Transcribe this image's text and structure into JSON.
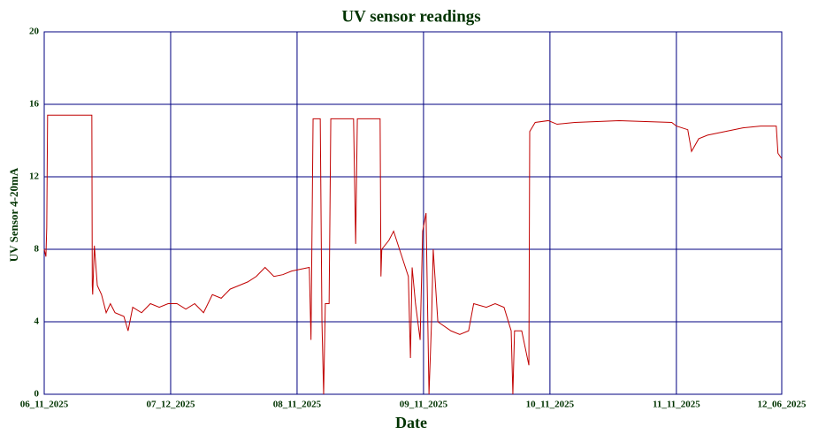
{
  "chart_data": {
    "type": "line",
    "title": "UV sensor readings",
    "x_label": "Date",
    "y_label": "UV Sensor 4-20mA",
    "xlim": [
      0,
      175
    ],
    "xticks": [
      {
        "value": 0,
        "label": "06_11_2025"
      },
      {
        "value": 30,
        "label": "07_12_2025"
      },
      {
        "value": 60,
        "label": "08_11_2025"
      },
      {
        "value": 90,
        "label": "09_11_2025"
      },
      {
        "value": 120,
        "label": "10_11_2025"
      },
      {
        "value": 150,
        "label": "11_11_2025"
      },
      {
        "value": 175,
        "label": "12_06_2025"
      }
    ],
    "ylim": [
      0,
      20
    ],
    "yticks": [
      0,
      4,
      8,
      12,
      16,
      20
    ],
    "grid": true,
    "grid_color": "#000080",
    "series": [
      {
        "color": "#c00000",
        "x": [
          0,
          0.4,
          0.6,
          0.8,
          11.3,
          11.4,
          11.5,
          11.9,
          12.6,
          13.6,
          14.7,
          15.7,
          16.8,
          18.9,
          19.9,
          21.0,
          23.1,
          25.2,
          27.3,
          29.4,
          31.5,
          33.6,
          35.7,
          37.8,
          39.9,
          42.0,
          44.1,
          46.2,
          48.3,
          50.3,
          52.4,
          54.5,
          56.6,
          58.7,
          62.9,
          63.3,
          63.8,
          65.5,
          65.9,
          66.3,
          66.7,
          67.6,
          68.0,
          73.4,
          73.9,
          74.3,
          79.7,
          79.9,
          80.1,
          81.8,
          82.9,
          85.0,
          86.4,
          86.9,
          87.3,
          88.1,
          89.2,
          89.8,
          90.6,
          91.3,
          91.9,
          92.3,
          93.4,
          96.5,
          98.6,
          100.7,
          101.9,
          104.9,
          107.0,
          109.1,
          110.8,
          111.2,
          111.6,
          113.3,
          115.0,
          115.2,
          116.5,
          119.6,
          121.7,
          125.9,
          136.4,
          148.9,
          150.0,
          152.7,
          153.6,
          155.3,
          157.4,
          161.6,
          165.8,
          170.0,
          173.7,
          174.1,
          175.0
        ],
        "values": [
          8,
          7.6,
          9.2,
          15.4,
          15.4,
          6.0,
          5.5,
          8.2,
          6.0,
          5.5,
          4.5,
          5.0,
          4.5,
          4.3,
          3.5,
          4.8,
          4.5,
          5.0,
          4.8,
          5.0,
          5.0,
          4.7,
          5.0,
          4.5,
          5.5,
          5.3,
          5.8,
          6.0,
          6.2,
          6.5,
          7.0,
          6.5,
          6.6,
          6.8,
          7.0,
          3.0,
          15.2,
          15.2,
          4.0,
          0,
          5.0,
          5.0,
          15.2,
          15.2,
          8.3,
          15.2,
          15.2,
          6.5,
          8.0,
          8.5,
          9.0,
          7.5,
          6.5,
          2.0,
          7.0,
          5.0,
          3.0,
          9.0,
          10.0,
          0,
          4.0,
          8.0,
          4.0,
          3.5,
          3.3,
          3.5,
          5.0,
          4.8,
          5.0,
          4.8,
          3.5,
          0,
          3.5,
          3.5,
          1.6,
          14.5,
          15.0,
          15.1,
          14.9,
          15.0,
          15.1,
          15.0,
          14.8,
          14.6,
          13.4,
          14.1,
          14.3,
          14.5,
          14.7,
          14.8,
          14.8,
          13.3,
          13.0
        ]
      }
    ]
  }
}
